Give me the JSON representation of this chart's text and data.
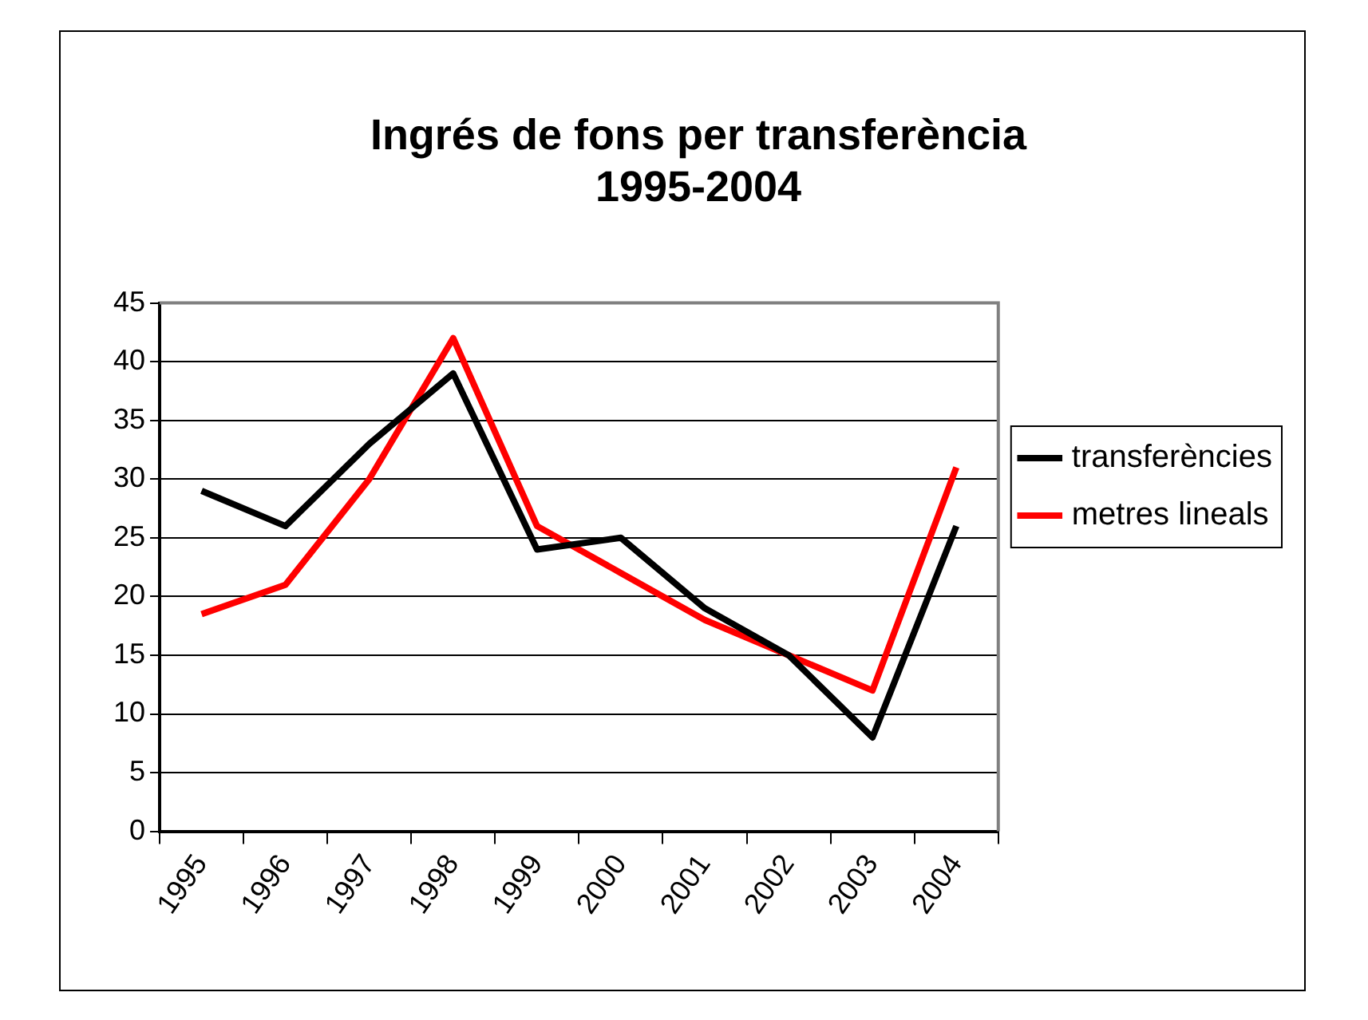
{
  "chart_data": {
    "type": "line",
    "title": [
      "Ingrés de fons per transferència",
      "1995-2004"
    ],
    "categories": [
      "1995",
      "1996",
      "1997",
      "1998",
      "1999",
      "2000",
      "2001",
      "2002",
      "2003",
      "2004"
    ],
    "series": [
      {
        "name": "transferències",
        "color": "#000000",
        "values": [
          29,
          26,
          33,
          39,
          24,
          25,
          19,
          15,
          8,
          26
        ]
      },
      {
        "name": "metres lineals",
        "color": "#ff0000",
        "values": [
          18.5,
          21,
          30,
          42,
          26,
          22,
          18,
          15,
          12,
          31
        ]
      }
    ],
    "ylim": [
      0,
      45
    ],
    "yticks": [
      0,
      5,
      10,
      15,
      20,
      25,
      30,
      35,
      40,
      45
    ],
    "grid": "y",
    "legend": "right",
    "marker": "none",
    "line_style": "solid"
  }
}
